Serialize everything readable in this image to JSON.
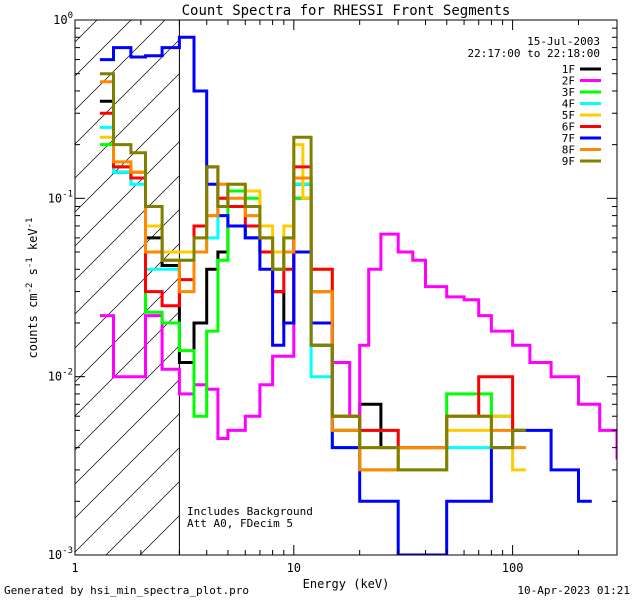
{
  "chart_data": {
    "type": "line",
    "title": "Count Spectra for RHESSI Front Segments",
    "xlabel": "Energy (keV)",
    "ylabel_parts": [
      "counts cm",
      "-2",
      " s",
      "-1",
      " keV",
      "-1"
    ],
    "xscale": "log",
    "yscale": "log",
    "xlim": [
      1,
      300
    ],
    "ylim": [
      0.001,
      1
    ],
    "x_ticks": [
      "1",
      "10",
      "100"
    ],
    "y_ticks": [
      "10",
      "10",
      "10",
      "10"
    ],
    "y_tick_exponents": [
      "-3",
      "-2",
      "-1",
      "0"
    ],
    "header_lines": [
      "15-Jul-2003",
      "22:17:00 to 22:18:00"
    ],
    "annotations": [
      "Includes Background",
      "Att A0, FDecim 5"
    ],
    "hatched_region_x": [
      1,
      3
    ],
    "legend_position": "top-right",
    "series": [
      {
        "name": "1F",
        "color": "#000000",
        "x": [
          1.3,
          1.5,
          1.8,
          2.1,
          2.5,
          3.0,
          3.5,
          4.0,
          4.5,
          5.0,
          6.0,
          7.0,
          8.0,
          9.0,
          10.0,
          12.0,
          15.0,
          20.0,
          25.0
        ],
        "y": [
          0.35,
          0.14,
          0.13,
          0.06,
          0.042,
          0.012,
          0.02,
          0.04,
          0.05,
          0.07,
          0.06,
          0.05,
          0.03,
          0.02,
          0.12,
          0.015,
          0.005,
          0.007,
          0.004
        ]
      },
      {
        "name": "2F",
        "color": "#ff00ff",
        "x": [
          1.3,
          1.5,
          1.8,
          2.1,
          2.5,
          3.0,
          3.5,
          4.0,
          4.5,
          5.0,
          6.0,
          7.0,
          8.0,
          10.0,
          12.0,
          15.0,
          18.0,
          20.0,
          22.0,
          25.0,
          30.0,
          35.0,
          40.0,
          50.0,
          60.0,
          70.0,
          80.0,
          100.0,
          120.0,
          150.0,
          200.0,
          250.0,
          300.0
        ],
        "y": [
          0.022,
          0.01,
          0.01,
          0.022,
          0.011,
          0.008,
          0.009,
          0.0085,
          0.0045,
          0.005,
          0.006,
          0.009,
          0.013,
          0.1,
          0.03,
          0.012,
          0.006,
          0.015,
          0.04,
          0.063,
          0.05,
          0.045,
          0.032,
          0.028,
          0.027,
          0.022,
          0.018,
          0.015,
          0.012,
          0.01,
          0.007,
          0.005,
          0.0035
        ]
      },
      {
        "name": "3F",
        "color": "#00ff00",
        "x": [
          1.3,
          1.5,
          1.8,
          2.1,
          2.5,
          3.0,
          3.5,
          4.0,
          4.5,
          5.0,
          6.0,
          7.0,
          8.0,
          9.0,
          10.0,
          12.0,
          15.0,
          20.0,
          30.0,
          50.0,
          80.0,
          100.0
        ],
        "y": [
          0.2,
          0.15,
          0.14,
          0.023,
          0.02,
          0.014,
          0.006,
          0.018,
          0.045,
          0.11,
          0.1,
          0.06,
          0.04,
          0.06,
          0.1,
          0.03,
          0.005,
          0.003,
          0.004,
          0.008,
          0.006,
          0.005
        ]
      },
      {
        "name": "4F",
        "color": "#00ffff",
        "x": [
          1.3,
          1.5,
          1.8,
          2.1,
          2.5,
          3.0,
          3.5,
          4.0,
          4.5,
          5.0,
          6.0,
          7.0,
          8.0,
          9.0,
          10.0,
          12.0,
          15.0,
          20.0,
          30.0,
          50.0,
          80.0,
          100.0
        ],
        "y": [
          0.25,
          0.14,
          0.12,
          0.04,
          0.04,
          0.045,
          0.05,
          0.06,
          0.08,
          0.07,
          0.06,
          0.05,
          0.04,
          0.05,
          0.12,
          0.01,
          0.004,
          0.005,
          0.003,
          0.004,
          0.006,
          0.004
        ]
      },
      {
        "name": "5F",
        "color": "#ffcc00",
        "x": [
          1.3,
          1.5,
          1.8,
          2.1,
          2.5,
          3.0,
          3.5,
          4.0,
          4.5,
          5.0,
          6.0,
          7.0,
          8.0,
          9.0,
          10.0,
          11.0,
          12.0,
          15.0,
          20.0,
          30.0,
          50.0,
          80.0,
          100.0
        ],
        "y": [
          0.22,
          0.15,
          0.14,
          0.07,
          0.05,
          0.05,
          0.06,
          0.08,
          0.1,
          0.12,
          0.11,
          0.07,
          0.05,
          0.07,
          0.2,
          0.1,
          0.04,
          0.006,
          0.004,
          0.003,
          0.005,
          0.006,
          0.003
        ]
      },
      {
        "name": "6F",
        "color": "#ff0000",
        "x": [
          1.3,
          1.5,
          1.8,
          2.1,
          2.5,
          3.0,
          3.5,
          4.0,
          4.5,
          5.0,
          6.0,
          7.0,
          8.0,
          9.0,
          10.0,
          12.0,
          15.0,
          20.0,
          30.0,
          50.0,
          70.0,
          100.0
        ],
        "y": [
          0.3,
          0.15,
          0.13,
          0.03,
          0.025,
          0.035,
          0.07,
          0.15,
          0.1,
          0.09,
          0.07,
          0.05,
          0.03,
          0.04,
          0.15,
          0.04,
          0.006,
          0.005,
          0.004,
          0.006,
          0.01,
          0.005
        ]
      },
      {
        "name": "7F",
        "color": "#0000ff",
        "x": [
          1.3,
          1.5,
          1.8,
          2.1,
          2.5,
          3.0,
          3.5,
          4.0,
          4.5,
          5.0,
          6.0,
          7.0,
          8.0,
          9.0,
          10.0,
          12.0,
          15.0,
          20.0,
          30.0,
          50.0,
          80.0,
          100.0,
          150.0,
          200.0
        ],
        "y": [
          0.6,
          0.7,
          0.62,
          0.63,
          0.7,
          0.8,
          0.4,
          0.12,
          0.08,
          0.07,
          0.06,
          0.04,
          0.015,
          0.02,
          0.05,
          0.02,
          0.004,
          0.002,
          0.001,
          0.002,
          0.004,
          0.005,
          0.003,
          0.002
        ]
      },
      {
        "name": "8F",
        "color": "#ff8800",
        "x": [
          1.3,
          1.5,
          1.8,
          2.1,
          2.5,
          3.0,
          3.5,
          4.0,
          4.5,
          5.0,
          6.0,
          7.0,
          8.0,
          9.0,
          10.0,
          12.0,
          15.0,
          20.0,
          30.0,
          50.0,
          80.0,
          100.0
        ],
        "y": [
          0.45,
          0.16,
          0.14,
          0.05,
          0.045,
          0.03,
          0.05,
          0.08,
          0.12,
          0.1,
          0.08,
          0.06,
          0.04,
          0.05,
          0.13,
          0.03,
          0.005,
          0.003,
          0.004,
          0.006,
          0.005,
          0.004
        ]
      },
      {
        "name": "9F",
        "color": "#808000",
        "x": [
          1.3,
          1.5,
          1.8,
          2.1,
          2.5,
          3.0,
          3.5,
          4.0,
          4.5,
          5.0,
          6.0,
          7.0,
          8.0,
          9.0,
          10.0,
          12.0,
          15.0,
          20.0,
          30.0,
          50.0,
          80.0,
          100.0
        ],
        "y": [
          0.5,
          0.2,
          0.18,
          0.09,
          0.045,
          0.045,
          0.06,
          0.15,
          0.09,
          0.12,
          0.09,
          0.06,
          0.04,
          0.06,
          0.22,
          0.015,
          0.006,
          0.004,
          0.003,
          0.006,
          0.004,
          0.005
        ]
      }
    ]
  },
  "footer": {
    "left": "Generated by hsi_min_spectra_plot.pro",
    "right": "10-Apr-2023 01:21"
  }
}
